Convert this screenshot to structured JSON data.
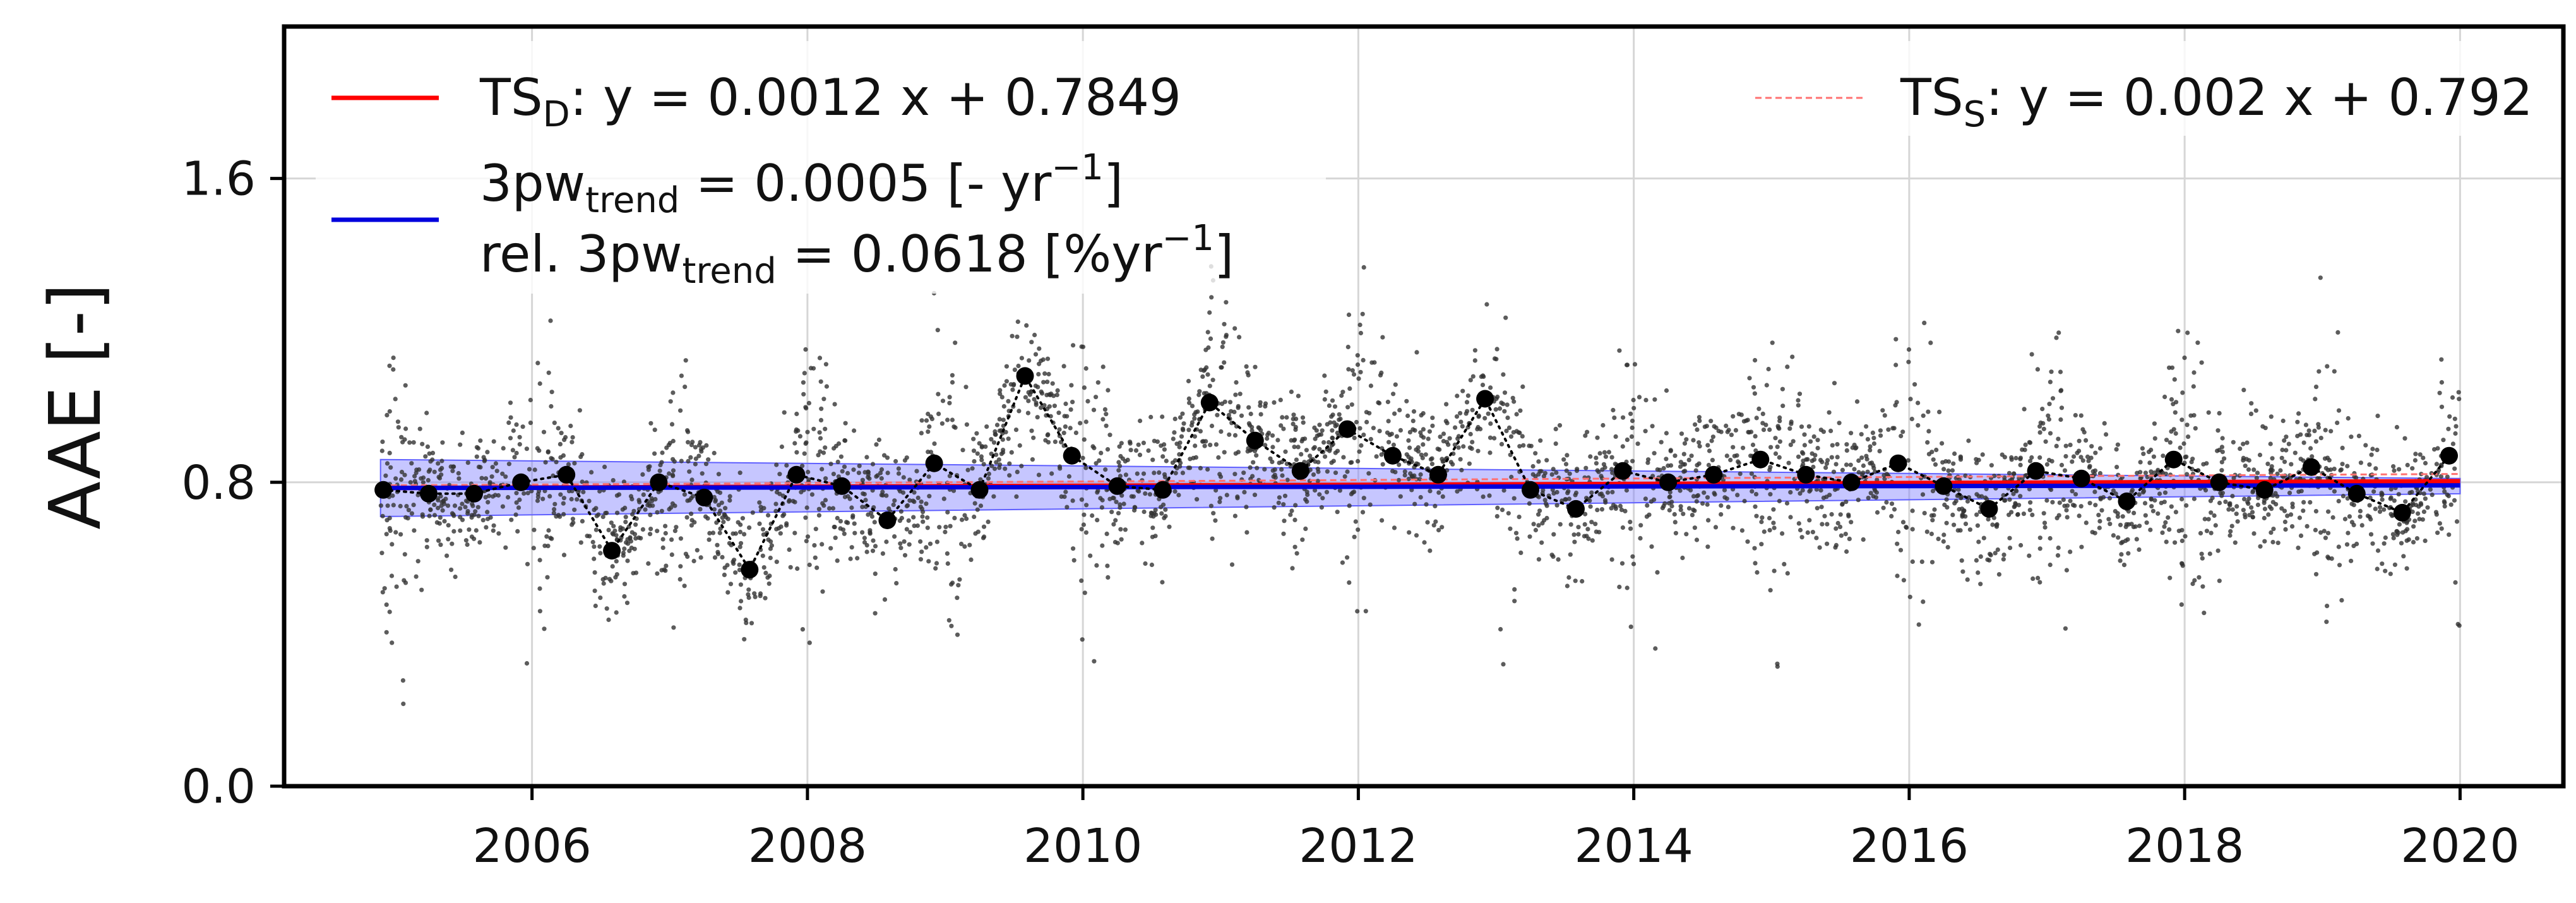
{
  "chart_data": {
    "type": "scatter",
    "ylabel": "AAE [-]",
    "xlabel": "",
    "ylim": [
      0.0,
      2.0
    ],
    "xlim": [
      2004.2,
      2020.75
    ],
    "yticks": [
      0.0,
      0.8,
      1.6
    ],
    "ytick_labels": [
      "0.0",
      "0.8",
      "1.6"
    ],
    "xticks": [
      2006,
      2008,
      2010,
      2012,
      2014,
      2016,
      2018,
      2020
    ],
    "xtick_labels": [
      "2006",
      "2008",
      "2010",
      "2012",
      "2014",
      "2016",
      "2018",
      "2020"
    ],
    "grid": true,
    "legend_placement": "top",
    "colors": {
      "ts_d": "#ff0000",
      "ts_s": "#ff7070",
      "trend": "#0000dd",
      "band": "#8080ff",
      "monthly": "#000000",
      "daily": "#333333"
    },
    "legend": {
      "ts_d": {
        "prefix": "TS",
        "sub": "D",
        "rest": ": y = 0.0012 x + 0.7849"
      },
      "ts_s": {
        "prefix": "TS",
        "sub": "S",
        "rest": ": y = 0.002 x + 0.792"
      },
      "trend_line1": {
        "prefix": "3pw",
        "sub": "trend",
        "rest": " = 0.0005 [- yr",
        "sup": "−1",
        "end": "]"
      },
      "trend_line2": {
        "prefix": "rel. 3pw",
        "sub": "trend",
        "rest": " = 0.0618 [%yr",
        "sup": "−1",
        "end": "]"
      }
    },
    "series": [
      {
        "name": "TS_D",
        "kind": "line",
        "x": [
          2004.9,
          2020.0
        ],
        "y": [
          0.785,
          0.803
        ]
      },
      {
        "name": "TS_S",
        "kind": "line",
        "x": [
          2004.9,
          2020.0
        ],
        "y": [
          0.792,
          0.822
        ]
      },
      {
        "name": "3pw_trend",
        "kind": "line",
        "x": [
          2004.9,
          2020.0
        ],
        "y": [
          0.785,
          0.792
        ]
      },
      {
        "name": "3pw_trend_band",
        "kind": "band",
        "x": [
          2004.9,
          2020.0
        ],
        "lower": [
          0.71,
          0.77
        ],
        "upper": [
          0.86,
          0.81
        ]
      },
      {
        "name": "monthly_median",
        "kind": "points_dotted",
        "x": [
          2004.92,
          2005.25,
          2005.58,
          2005.92,
          2006.25,
          2006.58,
          2006.92,
          2007.25,
          2007.58,
          2007.92,
          2008.25,
          2008.58,
          2008.92,
          2009.25,
          2009.58,
          2009.92,
          2010.25,
          2010.58,
          2010.92,
          2011.25,
          2011.58,
          2011.92,
          2012.25,
          2012.58,
          2012.92,
          2013.25,
          2013.58,
          2013.92,
          2014.25,
          2014.58,
          2014.92,
          2015.25,
          2015.58,
          2015.92,
          2016.25,
          2016.58,
          2016.92,
          2017.25,
          2017.58,
          2017.92,
          2018.25,
          2018.58,
          2018.92,
          2019.25,
          2019.58,
          2019.92
        ],
        "y": [
          0.78,
          0.77,
          0.77,
          0.8,
          0.82,
          0.62,
          0.8,
          0.76,
          0.57,
          0.82,
          0.79,
          0.7,
          0.85,
          0.78,
          1.08,
          0.87,
          0.79,
          0.78,
          1.01,
          0.91,
          0.83,
          0.94,
          0.87,
          0.82,
          1.02,
          0.78,
          0.73,
          0.83,
          0.8,
          0.82,
          0.86,
          0.82,
          0.8,
          0.85,
          0.79,
          0.73,
          0.83,
          0.81,
          0.75,
          0.86,
          0.8,
          0.78,
          0.84,
          0.77,
          0.72,
          0.87
        ]
      }
    ]
  }
}
